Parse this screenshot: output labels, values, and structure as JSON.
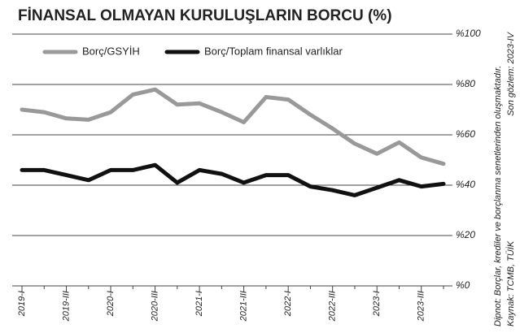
{
  "chart_data": {
    "type": "line",
    "title": "FİNANSAL OLMAYAN KURULUŞLARIN BORCU (%)",
    "categories": [
      "2019-I",
      null,
      "2019-III",
      null,
      "2020-I",
      null,
      "2020-III",
      null,
      "2021-I",
      null,
      "2021-III",
      null,
      "2022-I",
      null,
      "2022-III",
      null,
      "2023-I",
      null,
      "2023-III",
      null
    ],
    "series": [
      {
        "name": "Borç/GSYİH",
        "color": "#999999",
        "values": [
          70,
          69,
          66.5,
          66,
          69,
          76,
          78,
          72,
          72.5,
          69,
          65,
          75,
          74,
          68,
          62.5,
          56.5,
          52.5,
          57,
          51,
          48.5
        ]
      },
      {
        "name": "Borç/Toplam finansal varlıklar",
        "color": "#111111",
        "values": [
          46,
          46,
          44,
          42,
          46,
          46,
          48,
          41,
          46,
          44.5,
          41,
          44,
          44,
          39.5,
          38,
          36,
          39,
          42,
          39.5,
          40.5
        ]
      }
    ],
    "ylim": [
      0,
      100
    ],
    "yticks": [
      {
        "value": 0,
        "label": "%0"
      },
      {
        "value": 20,
        "label": "%20"
      },
      {
        "value": 40,
        "label": "%40"
      },
      {
        "value": 60,
        "label": "%60"
      },
      {
        "value": 80,
        "label": "%80"
      },
      {
        "value": 100,
        "label": "%100"
      }
    ],
    "grid": true,
    "legend": "top-left",
    "notes": [
      "Son gözlem: 2023-IV",
      "Dipnot: Borçlar, krediler ve borçlanma senetlerinden oluşmaktadır.",
      "Kaynak: TCMB, TÜİK"
    ]
  }
}
